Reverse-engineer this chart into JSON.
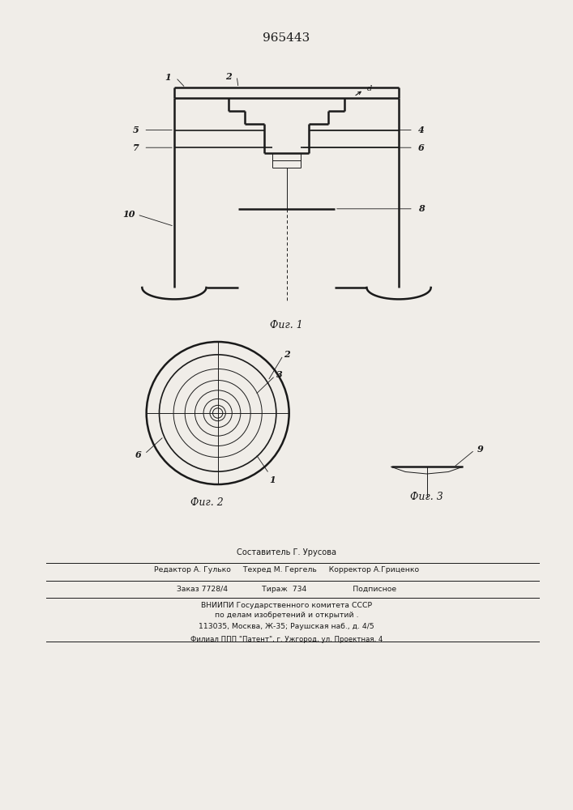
{
  "patent_number": "965443",
  "fig1_caption": "Фиг. 1",
  "fig2_caption": "Фиг. 2",
  "fig3_caption": "Фиг. 3",
  "footer_lines": [
    "Составитель Г. Урусова",
    "Редактор А. Гулько     Техред М. Гергель     Корректор А.Гриценко",
    "Заказ 7728/4              Тираж  734                   Подписное",
    "ВНИИПИ Государственного комитета СССР",
    "по делам изобретений и открытий .",
    "113035, Москва, Ж-35; Раушская наб., д. 4/5",
    "Филиал ППП \"Патент\", г. Ужгород, ул. Проектная, 4"
  ],
  "bg_color": "#f0ede8",
  "line_color": "#1a1a1a"
}
